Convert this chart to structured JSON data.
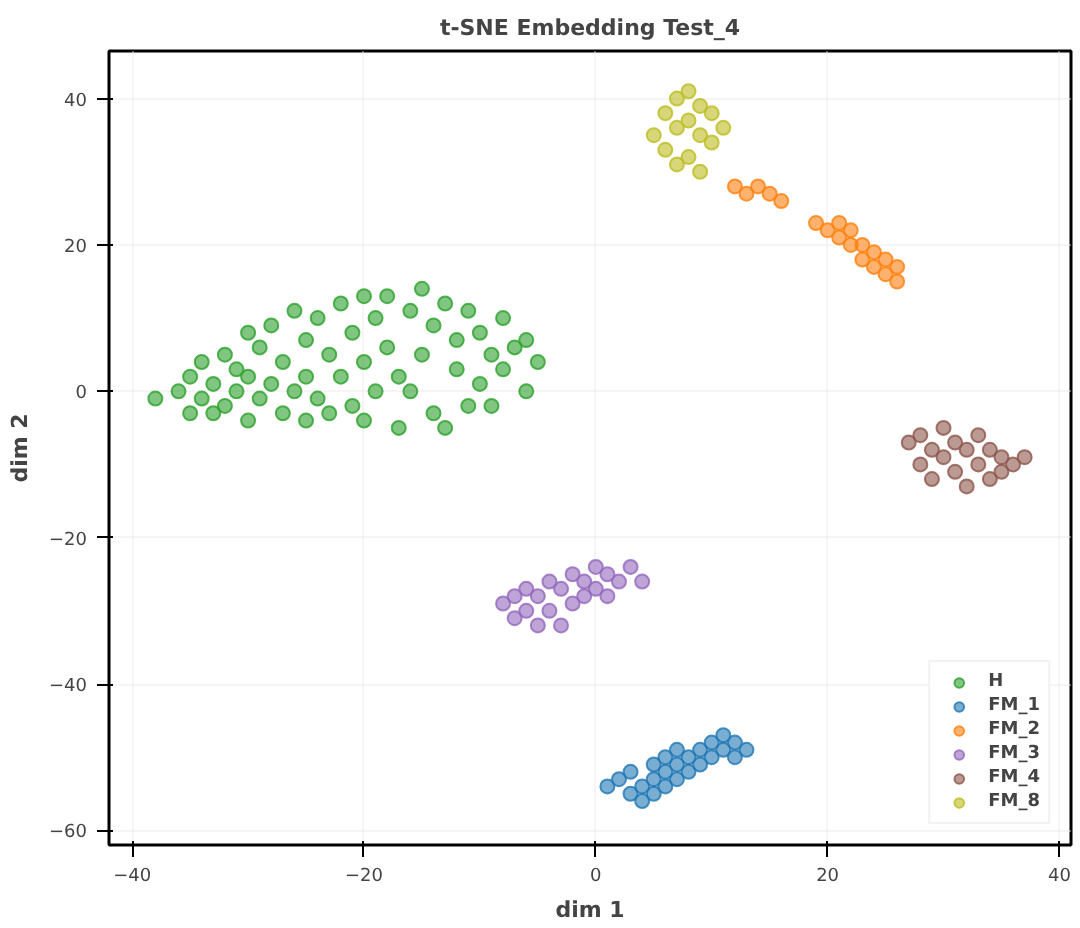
{
  "chart_data": {
    "type": "scatter",
    "title": "t-SNE Embedding Test_4",
    "xlabel": "dim 1",
    "ylabel": "dim 2",
    "xlim": [
      -42,
      41
    ],
    "ylim": [
      -62,
      46.5
    ],
    "xticks": [
      -40,
      -20,
      0,
      20,
      40
    ],
    "yticks": [
      -60,
      -40,
      -20,
      0,
      20,
      40
    ],
    "grid": true,
    "legend": "bottom right",
    "marker": "circle",
    "series": [
      {
        "name": "H",
        "color": "#2ca02c",
        "x": [
          -38,
          -36,
          -35,
          -35,
          -34,
          -34,
          -33,
          -33,
          -32,
          -32,
          -31,
          -31,
          -30,
          -30,
          -30,
          -29,
          -29,
          -28,
          -28,
          -27,
          -27,
          -26,
          -26,
          -25,
          -25,
          -25,
          -24,
          -24,
          -23,
          -23,
          -22,
          -22,
          -21,
          -21,
          -20,
          -20,
          -20,
          -19,
          -19,
          -18,
          -18,
          -17,
          -17,
          -16,
          -16,
          -15,
          -15,
          -14,
          -14,
          -13,
          -13,
          -12,
          -12,
          -11,
          -11,
          -10,
          -10,
          -9,
          -9,
          -8,
          -8,
          -7,
          -6,
          -6,
          -5
        ],
        "values": [
          -1,
          0,
          -3,
          2,
          4,
          -1,
          -3,
          1,
          5,
          -2,
          0,
          3,
          8,
          -4,
          2,
          6,
          -1,
          9,
          1,
          -3,
          4,
          11,
          0,
          -4,
          7,
          2,
          10,
          -1,
          5,
          -3,
          12,
          2,
          -2,
          8,
          13,
          -4,
          4,
          0,
          10,
          13,
          6,
          -5,
          2,
          11,
          0,
          14,
          5,
          -3,
          9,
          12,
          -5,
          3,
          7,
          11,
          -2,
          8,
          1,
          5,
          -2,
          10,
          3,
          6,
          0,
          7,
          4
        ]
      },
      {
        "name": "FM_1",
        "color": "#1f77b4",
        "x": [
          1,
          2,
          3,
          3,
          4,
          4,
          5,
          5,
          5,
          6,
          6,
          6,
          7,
          7,
          7,
          8,
          8,
          9,
          9,
          10,
          10,
          11,
          11,
          12,
          12,
          13
        ],
        "values": [
          -54,
          -53,
          -55,
          -52,
          -54,
          -56,
          -51,
          -53,
          -55,
          -50,
          -52,
          -54,
          -51,
          -53,
          -49,
          -50,
          -52,
          -49,
          -51,
          -48,
          -50,
          -49,
          -47,
          -48,
          -50,
          -49
        ]
      },
      {
        "name": "FM_2",
        "color": "#ff7f0e",
        "x": [
          12,
          13,
          14,
          15,
          16,
          19,
          20,
          21,
          21,
          22,
          22,
          23,
          23,
          24,
          24,
          25,
          25,
          26,
          26
        ],
        "values": [
          28,
          27,
          28,
          27,
          26,
          23,
          22,
          23,
          21,
          20,
          22,
          18,
          20,
          17,
          19,
          16,
          18,
          15,
          17
        ]
      },
      {
        "name": "FM_3",
        "color": "#9467bd",
        "x": [
          -8,
          -7,
          -7,
          -6,
          -6,
          -5,
          -5,
          -4,
          -4,
          -3,
          -3,
          -2,
          -2,
          -1,
          -1,
          0,
          0,
          1,
          1,
          2,
          3,
          4
        ],
        "values": [
          -29,
          -28,
          -31,
          -27,
          -30,
          -32,
          -28,
          -26,
          -30,
          -27,
          -32,
          -25,
          -29,
          -26,
          -28,
          -24,
          -27,
          -25,
          -28,
          -26,
          -24,
          -26
        ]
      },
      {
        "name": "FM_4",
        "color": "#8c564b",
        "x": [
          27,
          28,
          28,
          29,
          29,
          30,
          30,
          31,
          31,
          32,
          32,
          33,
          33,
          34,
          34,
          35,
          35,
          36,
          37
        ],
        "values": [
          -7,
          -6,
          -10,
          -8,
          -12,
          -5,
          -9,
          -7,
          -11,
          -13,
          -8,
          -6,
          -10,
          -12,
          -8,
          -9,
          -11,
          -10,
          -9
        ]
      },
      {
        "name": "FM_8",
        "color": "#bcbd22",
        "x": [
          5,
          6,
          6,
          7,
          7,
          7,
          8,
          8,
          8,
          9,
          9,
          9,
          10,
          10,
          11
        ],
        "values": [
          35,
          33,
          38,
          31,
          36,
          40,
          32,
          37,
          41,
          30,
          35,
          39,
          34,
          38,
          36
        ]
      }
    ]
  }
}
